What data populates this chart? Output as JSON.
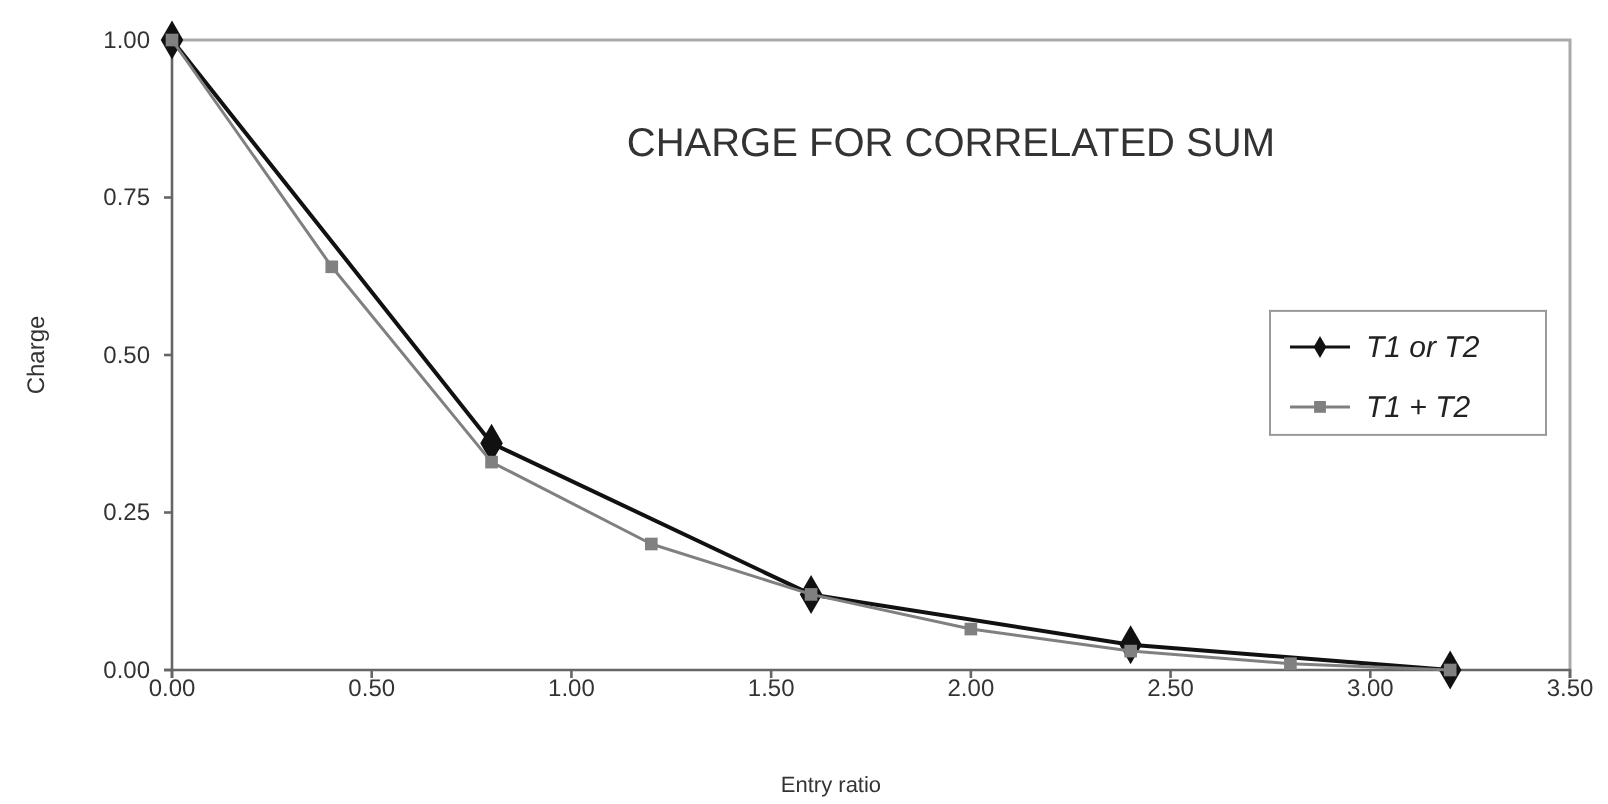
{
  "chart_data": {
    "type": "line",
    "title": "CHARGE FOR CORRELATED SUM",
    "xlabel": "Entry ratio",
    "ylabel": "Charge",
    "xlim": [
      0,
      3.5
    ],
    "xticks": [
      {
        "value": 0,
        "label": "0.00"
      },
      {
        "value": 0.5,
        "label": "0.50"
      },
      {
        "value": 1,
        "label": "1.00"
      },
      {
        "value": 1.5,
        "label": "1.50"
      },
      {
        "value": 2,
        "label": "2.00"
      },
      {
        "value": 2.5,
        "label": "2.50"
      },
      {
        "value": 3,
        "label": "3.00"
      },
      {
        "value": 3.5,
        "label": "3.50"
      }
    ],
    "ylim": [
      0,
      1
    ],
    "yticks": [
      {
        "value": 0,
        "label": "0.00"
      },
      {
        "value": 0.25,
        "label": "0.25"
      },
      {
        "value": 0.5,
        "label": "0.50"
      },
      {
        "value": 0.75,
        "label": "0.75"
      },
      {
        "value": 1,
        "label": "1.00"
      }
    ],
    "grid": false,
    "legend": "right",
    "series": [
      {
        "name": "T1 or T2",
        "color": "#111111",
        "marker": "diamond",
        "x": [
          0,
          0.8,
          1.6,
          2.4,
          3.2
        ],
        "values": [
          1.0,
          0.36,
          0.12,
          0.04,
          0.0
        ]
      },
      {
        "name": "T1 + T2",
        "color": "#808080",
        "marker": "square",
        "x": [
          0,
          0.4,
          0.8,
          1.2,
          1.6,
          2.0,
          2.4,
          2.8,
          3.2
        ],
        "values": [
          1.0,
          0.64,
          0.33,
          0.2,
          0.12,
          0.065,
          0.03,
          0.01,
          0.0
        ]
      }
    ]
  }
}
